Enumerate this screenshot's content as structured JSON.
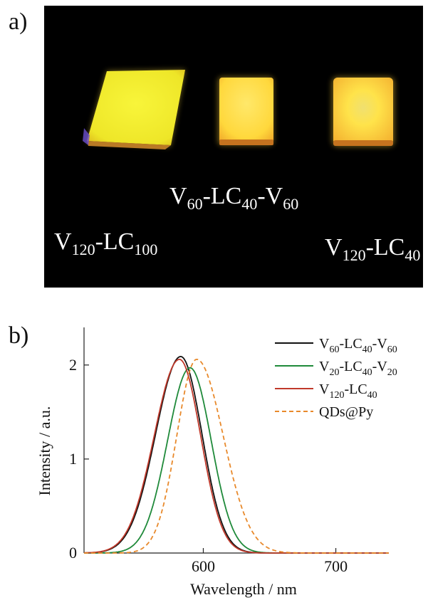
{
  "panel_a": {
    "label": "a)",
    "samples": [
      {
        "base": "V",
        "s1": "120",
        "mid": "-LC",
        "s2": "100",
        "mid2": "",
        "s3": ""
      },
      {
        "base": "V",
        "s1": "60",
        "mid": "-LC",
        "s2": "40",
        "mid2": "-V",
        "s3": "60"
      },
      {
        "base": "V",
        "s1": "120",
        "mid": "-LC",
        "s2": "40",
        "mid2": "",
        "s3": ""
      }
    ],
    "colors": {
      "background": "#000000",
      "glow_yellow": "#f6f32a",
      "glow_orange": "#ffd23a"
    }
  },
  "panel_b": {
    "label": "b)"
  },
  "chart_data": {
    "type": "line",
    "xlabel": "Wavelength / nm",
    "ylabel": "Intensity / a.u.",
    "xlim": [
      510,
      740
    ],
    "ylim": [
      0,
      2.4
    ],
    "xticks": [
      600,
      700
    ],
    "yticks": [
      0,
      1,
      2
    ],
    "legend_position": "top-right",
    "series": [
      {
        "name": "V60-LC40-V60",
        "legend": {
          "base": "V",
          "s1": "60",
          "mid": "-LC",
          "s2": "40",
          "mid2": "-V",
          "s3": "60"
        },
        "peak_x": 583,
        "peak_y": 2.09,
        "sigma_left": 19,
        "sigma_right": 16,
        "color": "#111111",
        "dash": false
      },
      {
        "name": "V20-LC40-V20",
        "legend": {
          "base": "V",
          "s1": "20",
          "mid": "-LC",
          "s2": "40",
          "mid2": "-V",
          "s3": "20"
        },
        "peak_x": 590,
        "peak_y": 1.97,
        "sigma_left": 17,
        "sigma_right": 16,
        "color": "#1f8a3a",
        "dash": false
      },
      {
        "name": "V120-LC40",
        "legend": {
          "base": "V",
          "s1": "120",
          "mid": "-LC",
          "s2": "40",
          "mid2": "",
          "s3": ""
        },
        "peak_x": 582,
        "peak_y": 2.06,
        "sigma_left": 19,
        "sigma_right": 16,
        "color": "#c0392b",
        "dash": false
      },
      {
        "name": "QDs@Py",
        "legend": {
          "base": "QDs@Py",
          "s1": "",
          "mid": "",
          "s2": "",
          "mid2": "",
          "s3": ""
        },
        "peak_x": 595,
        "peak_y": 2.06,
        "sigma_left": 15,
        "sigma_right": 20,
        "color": "#e8892b",
        "dash": true
      }
    ]
  }
}
